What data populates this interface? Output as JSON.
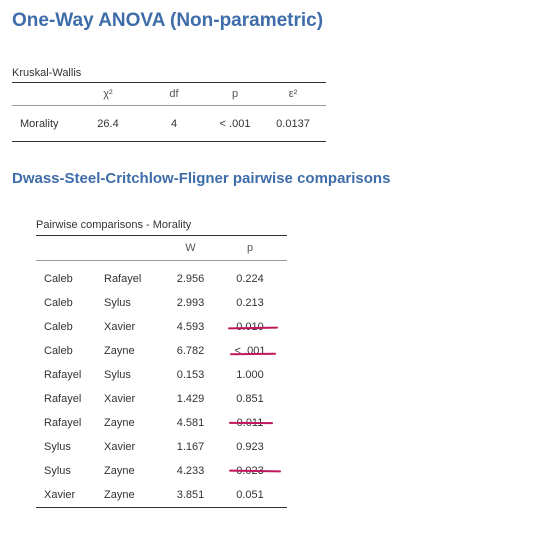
{
  "titles": {
    "main": "One-Way ANOVA (Non-parametric)",
    "pairwise_section": "Dwass-Steel-Critchlow-Fligner pairwise comparisons"
  },
  "kruskal_wallis": {
    "caption": "Kruskal-Wallis",
    "headers": [
      "",
      "χ²",
      "df",
      "p",
      "ε²"
    ],
    "row": {
      "variable": "Morality",
      "chi2": "26.4",
      "df": "4",
      "p": "< .001",
      "epsilon2": "0.0137"
    }
  },
  "pairwise": {
    "caption": "Pairwise comparisons - Morality",
    "headers": [
      "",
      "",
      "W",
      "p"
    ],
    "rows": [
      {
        "g1": "Caleb",
        "g2": "Rafayel",
        "W": "2.956",
        "p": "0.224"
      },
      {
        "g1": "Caleb",
        "g2": "Sylus",
        "W": "2.993",
        "p": "0.213"
      },
      {
        "g1": "Caleb",
        "g2": "Xavier",
        "W": "4.593",
        "p": "0.010"
      },
      {
        "g1": "Caleb",
        "g2": "Zayne",
        "W": "6.782",
        "p": "< .001"
      },
      {
        "g1": "Rafayel",
        "g2": "Sylus",
        "W": "0.153",
        "p": "1.000"
      },
      {
        "g1": "Rafayel",
        "g2": "Xavier",
        "W": "1.429",
        "p": "0.851"
      },
      {
        "g1": "Rafayel",
        "g2": "Zayne",
        "W": "4.581",
        "p": "0.011"
      },
      {
        "g1": "Sylus",
        "g2": "Xavier",
        "W": "1.167",
        "p": "0.923"
      },
      {
        "g1": "Sylus",
        "g2": "Zayne",
        "W": "4.233",
        "p": "0.023"
      },
      {
        "g1": "Xavier",
        "g2": "Zayne",
        "W": "3.851",
        "p": "0.051"
      }
    ]
  },
  "annotation_color": "#c0175d"
}
